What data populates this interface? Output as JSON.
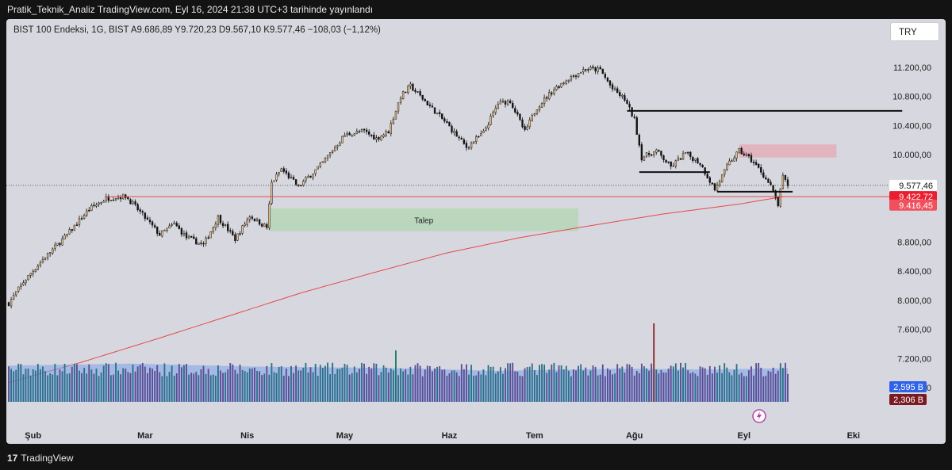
{
  "header": {
    "publish_line": "Pratik_Teknik_Analiz TradingView.com, Eyl 16, 2024 21:38 UTC+3 tarihinde yayınlandı"
  },
  "legend": {
    "text": "BIST 100 Endeksi, 1G, BIST   A9.686,89   Y9.720,23   D9.567,10   K9.577,46   −108,03 (−1,12%)"
  },
  "currency_button": "TRY",
  "footer": {
    "brand": "TradingView",
    "logo_glyph": "17"
  },
  "colors": {
    "background": "#d7d8df",
    "candle_up": "#f2c98f",
    "candle_down": "#131313",
    "ma_line": "#e5484d",
    "volume_bar": "#5b4b93",
    "volume_bar_up": "#2c6f87",
    "volume_ma_fill": "#7aa2e8",
    "talep_zone": "#b5d6b7",
    "supply_zone": "#e4aeb8"
  },
  "chart_data": {
    "type": "candlestick",
    "symbol": "BIST 100 Endeksi",
    "interval": "1G",
    "exchange": "BIST",
    "ohlc_last": {
      "open": "9.686,89",
      "high": "9.720,23",
      "low": "9.567,10",
      "close": "9.577,46",
      "change": "−108,03",
      "change_pct": "(−1,12%)"
    },
    "x_labels": [
      "Şub",
      "Mar",
      "Nis",
      "May",
      "Haz",
      "Tem",
      "Ağu",
      "Eyl",
      "Eki"
    ],
    "y_ticks": [
      "11.200,00",
      "10.800,00",
      "10.400,00",
      "10.000,00",
      "8.800,00",
      "8.400,00",
      "8.000,00",
      "7.600,00",
      "7.200,00",
      "6.800,00"
    ],
    "y_tick_values": [
      11200,
      10800,
      10400,
      10000,
      8800,
      8400,
      8000,
      7600,
      7200,
      6800
    ],
    "ylim": [
      6420,
      11600
    ],
    "price_labels": [
      {
        "text": "9.577,46",
        "value": 9577.46,
        "bg": "#ffffff",
        "fg": "#111111"
      },
      {
        "text": "9.422,72",
        "value": 9422.72,
        "bg": "#e91e2f",
        "fg": "#ffffff"
      },
      {
        "text": "9.416,45",
        "value": 9306,
        "bg": "#f0505c",
        "fg": "#ffffff"
      }
    ],
    "volume_labels": [
      {
        "text": "2,595 B",
        "bg": "#2f62e6",
        "fg": "#ffffff"
      },
      {
        "text": "2,306 B",
        "bg": "#7a1a22",
        "fg": "#ffffff"
      }
    ],
    "zones": [
      {
        "label": "Talep",
        "from_index": 107,
        "to_index": 234,
        "low": 8950,
        "high": 9260,
        "color": "#b5d6b7"
      },
      {
        "label": "",
        "from_index": 300,
        "to_index": 340,
        "low": 9960,
        "high": 10140,
        "color": "#e4aeb8"
      }
    ],
    "horizontal_lines": [
      {
        "from_index": 254,
        "to_index": 367,
        "value": 10600,
        "color": "#111111"
      },
      {
        "from_index": 259,
        "to_index": 288,
        "value": 9760,
        "color": "#111111"
      },
      {
        "from_index": 291,
        "to_index": 322,
        "value": 9490,
        "color": "#111111"
      },
      {
        "from_index": 40,
        "to_index": 380,
        "value": 9422.72,
        "color": "#e5484d"
      }
    ],
    "moving_average_200": [
      {
        "i": 0,
        "v": 6870
      },
      {
        "i": 30,
        "v": 7150
      },
      {
        "i": 60,
        "v": 7460
      },
      {
        "i": 90,
        "v": 7780
      },
      {
        "i": 120,
        "v": 8100
      },
      {
        "i": 150,
        "v": 8380
      },
      {
        "i": 180,
        "v": 8650
      },
      {
        "i": 210,
        "v": 8860
      },
      {
        "i": 240,
        "v": 9030
      },
      {
        "i": 270,
        "v": 9190
      },
      {
        "i": 300,
        "v": 9320
      },
      {
        "i": 318,
        "v": 9422
      }
    ],
    "close_path": [
      {
        "i": 0,
        "v": 7960
      },
      {
        "i": 6,
        "v": 8250
      },
      {
        "i": 14,
        "v": 8560
      },
      {
        "i": 24,
        "v": 8900
      },
      {
        "i": 33,
        "v": 9250
      },
      {
        "i": 40,
        "v": 9400
      },
      {
        "i": 48,
        "v": 9430
      },
      {
        "i": 54,
        "v": 9210
      },
      {
        "i": 62,
        "v": 8900
      },
      {
        "i": 68,
        "v": 9050
      },
      {
        "i": 73,
        "v": 8860
      },
      {
        "i": 80,
        "v": 8760
      },
      {
        "i": 86,
        "v": 9140
      },
      {
        "i": 93,
        "v": 8840
      },
      {
        "i": 99,
        "v": 9160
      },
      {
        "i": 106,
        "v": 9000
      },
      {
        "i": 108,
        "v": 9610
      },
      {
        "i": 112,
        "v": 9800
      },
      {
        "i": 119,
        "v": 9560
      },
      {
        "i": 128,
        "v": 9850
      },
      {
        "i": 138,
        "v": 10270
      },
      {
        "i": 146,
        "v": 10320
      },
      {
        "i": 151,
        "v": 10220
      },
      {
        "i": 156,
        "v": 10320
      },
      {
        "i": 161,
        "v": 10800
      },
      {
        "i": 165,
        "v": 10940
      },
      {
        "i": 172,
        "v": 10700
      },
      {
        "i": 180,
        "v": 10420
      },
      {
        "i": 188,
        "v": 10100
      },
      {
        "i": 195,
        "v": 10300
      },
      {
        "i": 201,
        "v": 10700
      },
      {
        "i": 206,
        "v": 10740
      },
      {
        "i": 212,
        "v": 10310
      },
      {
        "i": 217,
        "v": 10650
      },
      {
        "i": 224,
        "v": 10900
      },
      {
        "i": 230,
        "v": 11050
      },
      {
        "i": 237,
        "v": 11180
      },
      {
        "i": 243,
        "v": 11160
      },
      {
        "i": 248,
        "v": 10900
      },
      {
        "i": 253,
        "v": 10760
      },
      {
        "i": 257,
        "v": 10480
      },
      {
        "i": 260,
        "v": 9960
      },
      {
        "i": 266,
        "v": 10050
      },
      {
        "i": 272,
        "v": 9830
      },
      {
        "i": 278,
        "v": 10020
      },
      {
        "i": 284,
        "v": 9880
      },
      {
        "i": 290,
        "v": 9520
      },
      {
        "i": 296,
        "v": 9890
      },
      {
        "i": 300,
        "v": 10050
      },
      {
        "i": 304,
        "v": 9960
      },
      {
        "i": 309,
        "v": 9770
      },
      {
        "i": 313,
        "v": 9560
      },
      {
        "i": 316,
        "v": 9310
      },
      {
        "i": 318,
        "v": 9690
      },
      {
        "i": 320,
        "v": 9577
      }
    ],
    "volume_range": [
      0,
      4000
    ],
    "volume_ma_path": [
      {
        "i": 0,
        "v": 1850
      },
      {
        "i": 50,
        "v": 1950
      },
      {
        "i": 100,
        "v": 1800
      },
      {
        "i": 160,
        "v": 1720
      },
      {
        "i": 200,
        "v": 1580
      },
      {
        "i": 250,
        "v": 1690
      },
      {
        "i": 290,
        "v": 1650
      },
      {
        "i": 320,
        "v": 1720
      }
    ],
    "volume_spikes": [
      {
        "i": 159,
        "v": 2620
      },
      {
        "i": 265,
        "v": 4000
      }
    ],
    "bar_count": 321,
    "x_label_indices": [
      10,
      56,
      98,
      138,
      181,
      216,
      257,
      302,
      347
    ]
  }
}
